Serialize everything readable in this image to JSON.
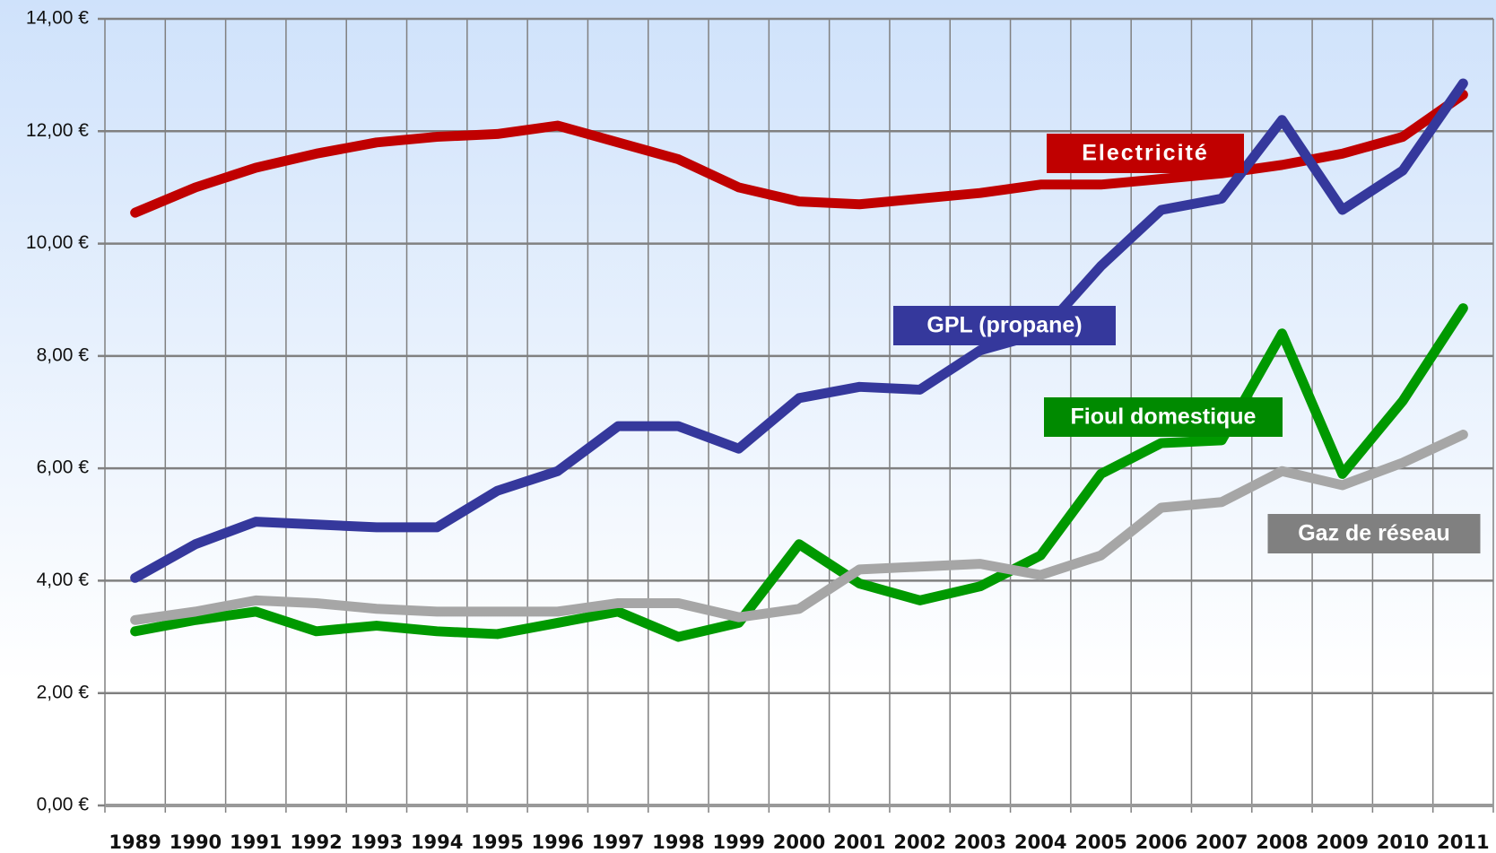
{
  "chart_data": {
    "type": "line",
    "categories": [
      "1989",
      "1990",
      "1991",
      "1992",
      "1993",
      "1994",
      "1995",
      "1996",
      "1997",
      "1998",
      "1999",
      "2000",
      "2001",
      "2002",
      "2003",
      "2004",
      "2005",
      "2006",
      "2007",
      "2008",
      "2009",
      "2010",
      "2011"
    ],
    "ylim": [
      0,
      14
    ],
    "yticks": [
      {
        "value": 0,
        "label": "0,00 €"
      },
      {
        "value": 2,
        "label": "2,00 €"
      },
      {
        "value": 4,
        "label": "4,00 €"
      },
      {
        "value": 6,
        "label": "6,00 €"
      },
      {
        "value": 8,
        "label": "8,00 €"
      },
      {
        "value": 10,
        "label": "10,00 €"
      },
      {
        "value": 12,
        "label": "12,00 €"
      },
      {
        "value": 14,
        "label": "14,00 €"
      }
    ],
    "grid": true,
    "series": [
      {
        "name": "Electricité",
        "color": "#c00000",
        "values": [
          10.55,
          11.0,
          11.35,
          11.6,
          11.8,
          11.9,
          11.95,
          12.1,
          11.8,
          11.5,
          11.0,
          10.75,
          10.7,
          10.8,
          10.9,
          11.05,
          11.05,
          11.15,
          11.25,
          11.4,
          11.6,
          11.9,
          12.65
        ]
      },
      {
        "name": "GPL (propane)",
        "color": "#35389c",
        "values": [
          4.05,
          4.65,
          5.05,
          5.0,
          4.95,
          4.95,
          5.6,
          5.95,
          6.75,
          6.75,
          6.35,
          7.25,
          7.45,
          7.4,
          8.1,
          8.4,
          9.6,
          10.6,
          10.8,
          12.2,
          10.6,
          11.3,
          12.85
        ]
      },
      {
        "name": "Fioul domestique",
        "color": "#009900",
        "values": [
          3.1,
          3.3,
          3.45,
          3.1,
          3.2,
          3.1,
          3.05,
          3.25,
          3.45,
          3.0,
          3.25,
          4.65,
          3.95,
          3.65,
          3.9,
          4.45,
          5.9,
          6.45,
          6.5,
          8.4,
          5.9,
          7.2,
          8.85
        ]
      },
      {
        "name": "Gaz de réseau",
        "color": "#a6a6a6",
        "values": [
          3.3,
          3.45,
          3.65,
          3.6,
          3.5,
          3.45,
          3.45,
          3.45,
          3.6,
          3.6,
          3.35,
          3.5,
          4.2,
          4.25,
          4.3,
          4.1,
          4.45,
          5.3,
          5.4,
          5.95,
          5.7,
          6.1,
          6.6
        ]
      }
    ]
  }
}
